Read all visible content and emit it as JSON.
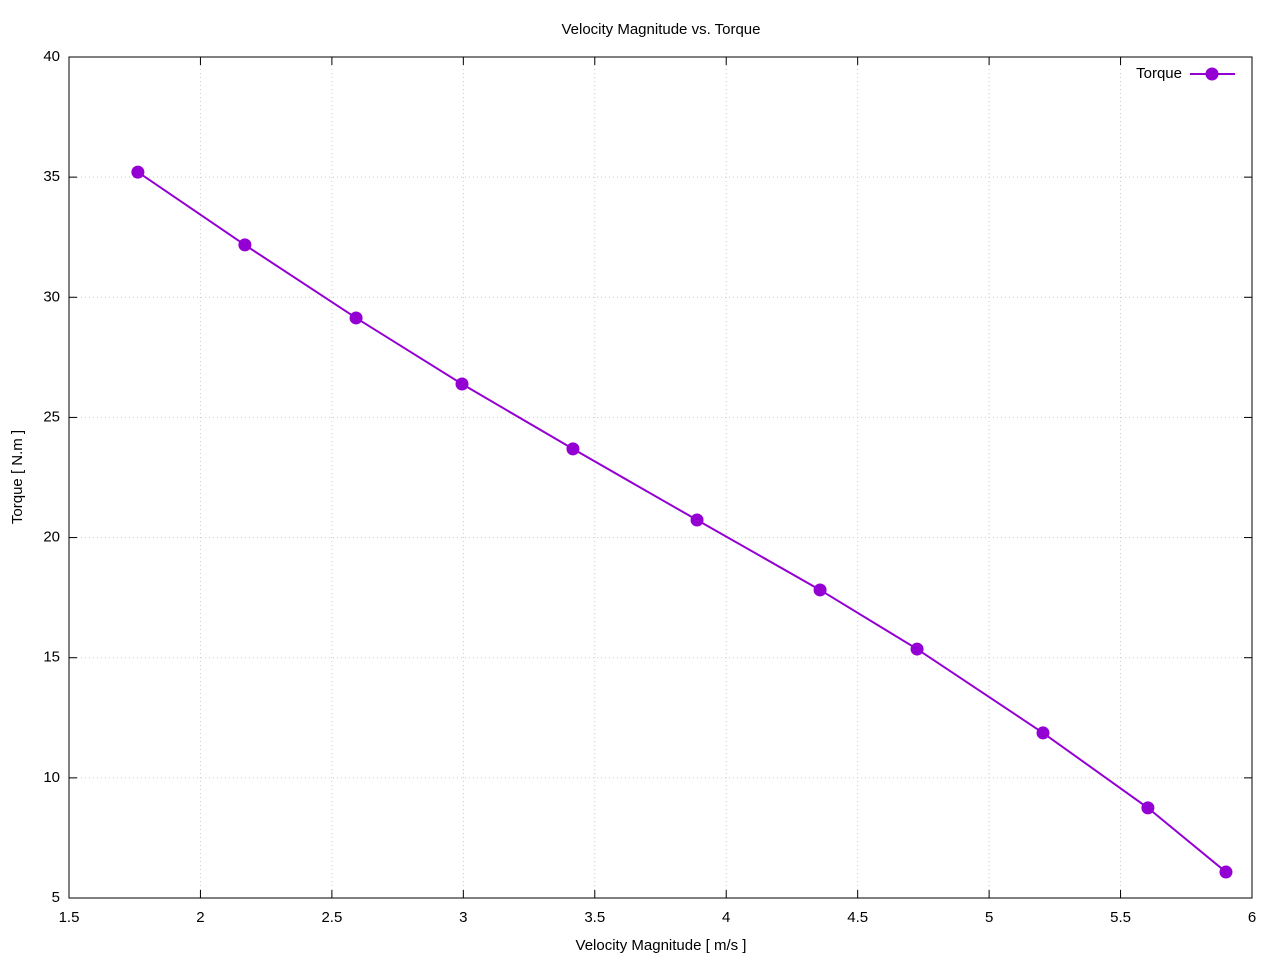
{
  "chart_data": {
    "type": "line",
    "title": "Velocity Magnitude vs. Torque",
    "x_label": "Velocity Magnitude [ m/s ]",
    "y_label": "Torque [ N.m ]",
    "x": [
      1.762,
      2.169,
      2.592,
      2.995,
      3.417,
      3.889,
      4.357,
      4.726,
      5.205,
      5.604,
      5.901
    ],
    "series": [
      {
        "name": "Torque",
        "color": "#9400d3",
        "values": [
          35.21,
          32.18,
          29.14,
          26.39,
          23.69,
          20.73,
          17.82,
          15.36,
          11.87,
          8.75,
          6.08
        ]
      }
    ],
    "xlim": [
      1.5,
      6
    ],
    "xticks": [
      1.5,
      2,
      2.5,
      3,
      3.5,
      4,
      4.5,
      5,
      5.5,
      6
    ],
    "ylim": [
      5,
      40
    ],
    "yticks": [
      5,
      10,
      15,
      20,
      25,
      30,
      35,
      40
    ],
    "grid": true,
    "legend": "top-right"
  }
}
